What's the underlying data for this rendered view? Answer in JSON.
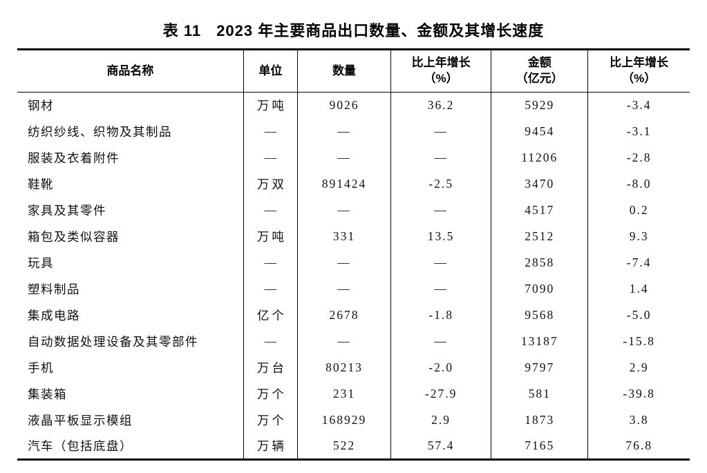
{
  "title": {
    "prefix": "表 11",
    "text": "2023 年主要商品出口数量、金额及其增长速度"
  },
  "table": {
    "headers": [
      {
        "label": "商品名称",
        "sub": ""
      },
      {
        "label": "单位",
        "sub": ""
      },
      {
        "label": "数量",
        "sub": ""
      },
      {
        "label": "比上年增长",
        "sub": "（%）"
      },
      {
        "label": "金额",
        "sub": "（亿元）"
      },
      {
        "label": "比上年增长",
        "sub": "（%）"
      }
    ],
    "empty_marker": "—",
    "rows": [
      [
        "钢材",
        "万吨",
        "9026",
        "36.2",
        "5929",
        "-3.4"
      ],
      [
        "纺织纱线、织物及其制品",
        "—",
        "—",
        "—",
        "9454",
        "-3.1"
      ],
      [
        "服装及衣着附件",
        "—",
        "—",
        "—",
        "11206",
        "-2.8"
      ],
      [
        "鞋靴",
        "万双",
        "891424",
        "-2.5",
        "3470",
        "-8.0"
      ],
      [
        "家具及其零件",
        "—",
        "—",
        "—",
        "4517",
        "0.2"
      ],
      [
        "箱包及类似容器",
        "万吨",
        "331",
        "13.5",
        "2512",
        "9.3"
      ],
      [
        "玩具",
        "—",
        "—",
        "—",
        "2858",
        "-7.4"
      ],
      [
        "塑料制品",
        "—",
        "—",
        "—",
        "7090",
        "1.4"
      ],
      [
        "集成电路",
        "亿个",
        "2678",
        "-1.8",
        "9568",
        "-5.0"
      ],
      [
        "自动数据处理设备及其零部件",
        "—",
        "—",
        "—",
        "13187",
        "-15.8"
      ],
      [
        "手机",
        "万台",
        "80213",
        "-2.0",
        "9797",
        "2.9"
      ],
      [
        "集装箱",
        "万个",
        "231",
        "-27.9",
        "581",
        "-39.8"
      ],
      [
        "液晶平板显示模组",
        "万个",
        "168929",
        "2.9",
        "1873",
        "3.8"
      ],
      [
        "汽车（包括底盘）",
        "万辆",
        "522",
        "57.4",
        "7165",
        "76.8"
      ]
    ]
  },
  "colors": {
    "text": "#111111",
    "border": "#000000",
    "background": "#ffffff"
  }
}
